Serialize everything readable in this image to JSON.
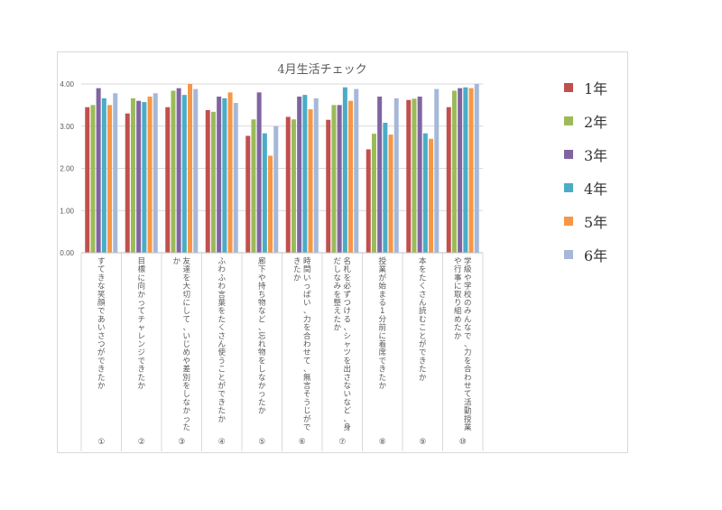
{
  "chart_data": {
    "type": "bar",
    "title": "4月生活チェック",
    "ylim": [
      0,
      4
    ],
    "yticks": [
      "0.00",
      "1.00",
      "2.00",
      "3.00",
      "4.00"
    ],
    "categories": [
      {
        "text": "すてきな笑顔であいさつができたか",
        "num": "①"
      },
      {
        "text": "目標に向かってチャレンジできたか",
        "num": "②"
      },
      {
        "text": "友達を大切にして、いじめや差別をしなかったか",
        "num": "③"
      },
      {
        "text": "ふわふわ言葉をたくさん使うことができたか",
        "num": "④"
      },
      {
        "text": "廊下や持ち物など、忘れ物をしなかったか",
        "num": "⑤"
      },
      {
        "text": "時間いっぱい、力を合わせて、無言そうじができたか",
        "num": "⑥"
      },
      {
        "text": "名札を必ずつける、シャツを出さないなど、身だしなみを整えたか",
        "num": "⑦"
      },
      {
        "text": "授業が始まる1分前に着席できたか",
        "num": "⑧"
      },
      {
        "text": "本をたくさん読むことができたか",
        "num": "⑨"
      },
      {
        "text": "学級や学校のみんなで、力を合わせて活動授業や行事に取り組めたか",
        "num": "⑩"
      }
    ],
    "series": [
      {
        "name": "1年",
        "color": "#c0504d",
        "values": [
          3.45,
          3.3,
          3.45,
          3.38,
          2.77,
          3.22,
          3.15,
          2.45,
          3.62,
          3.45
        ]
      },
      {
        "name": "2年",
        "color": "#9bbb59",
        "values": [
          3.5,
          3.66,
          3.84,
          3.34,
          3.16,
          3.16,
          3.5,
          2.82,
          3.65,
          3.84
        ]
      },
      {
        "name": "3年",
        "color": "#8064a2",
        "values": [
          3.9,
          3.6,
          3.9,
          3.7,
          3.8,
          3.7,
          3.5,
          3.7,
          3.7,
          3.9
        ]
      },
      {
        "name": "4年",
        "color": "#4bacc6",
        "values": [
          3.66,
          3.57,
          3.74,
          3.66,
          2.83,
          3.74,
          3.92,
          3.08,
          2.83,
          3.92
        ]
      },
      {
        "name": "5年",
        "color": "#f79646",
        "values": [
          3.5,
          3.7,
          4.0,
          3.8,
          2.3,
          3.4,
          3.6,
          2.8,
          2.7,
          3.9
        ]
      },
      {
        "name": "6年",
        "color": "#a6b8d8",
        "values": [
          3.78,
          3.78,
          3.88,
          3.55,
          3.0,
          3.66,
          3.88,
          3.66,
          3.88,
          4.0
        ]
      }
    ],
    "legend_position": "right",
    "grid": true
  }
}
